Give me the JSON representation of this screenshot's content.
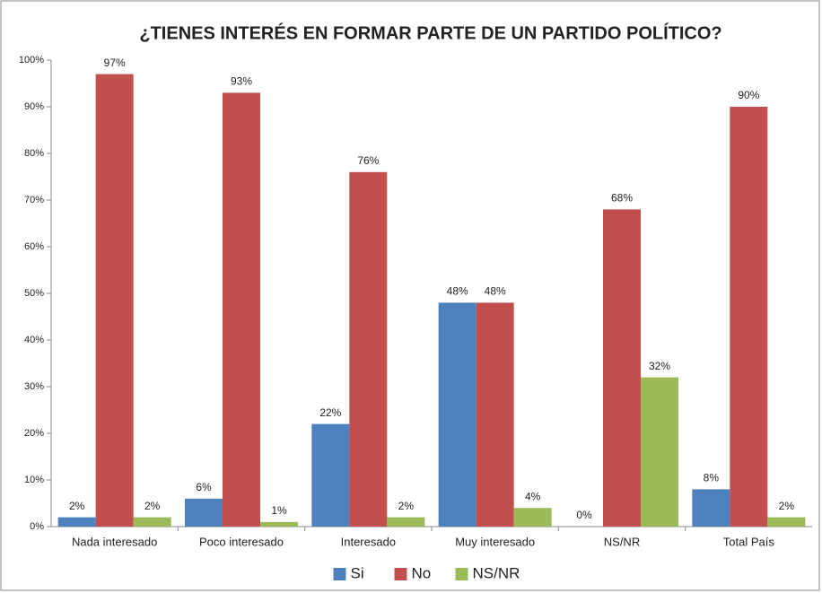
{
  "chart_data": {
    "type": "bar",
    "title": "¿TIENES INTERÉS EN FORMAR PARTE DE UN PARTIDO POLÍTICO?",
    "categories": [
      "Nada interesado",
      "Poco interesado",
      "Interesado",
      "Muy interesado",
      "NS/NR",
      "Total País"
    ],
    "series": [
      {
        "name": "Si",
        "color": "#4f81bd",
        "values": [
          2,
          6,
          22,
          48,
          0,
          8
        ],
        "value_labels": [
          "2%",
          "6%",
          "22%",
          "48%",
          "0%",
          "8%"
        ]
      },
      {
        "name": "No",
        "color": "#c0504d",
        "values": [
          97,
          93,
          76,
          48,
          68,
          90
        ],
        "value_labels": [
          "97%",
          "93%",
          "76%",
          "48%",
          "68%",
          "90%"
        ]
      },
      {
        "name": "NS/NR",
        "color": "#9bbb59",
        "values": [
          2,
          1,
          2,
          4,
          32,
          2
        ],
        "value_labels": [
          "2%",
          "1%",
          "2%",
          "4%",
          "32%",
          "2%"
        ]
      }
    ],
    "ylim": [
      0,
      100
    ],
    "yticks": [
      {
        "value": 0,
        "label": "0%"
      },
      {
        "value": 10,
        "label": "10%"
      },
      {
        "value": 20,
        "label": "20%"
      },
      {
        "value": 30,
        "label": "30%"
      },
      {
        "value": 40,
        "label": "40%"
      },
      {
        "value": 50,
        "label": "50%"
      },
      {
        "value": 60,
        "label": "60%"
      },
      {
        "value": 70,
        "label": "70%"
      },
      {
        "value": 80,
        "label": "80%"
      },
      {
        "value": 90,
        "label": "90%"
      },
      {
        "value": 100,
        "label": "100%"
      }
    ],
    "grid": false,
    "legend": "bottom"
  }
}
